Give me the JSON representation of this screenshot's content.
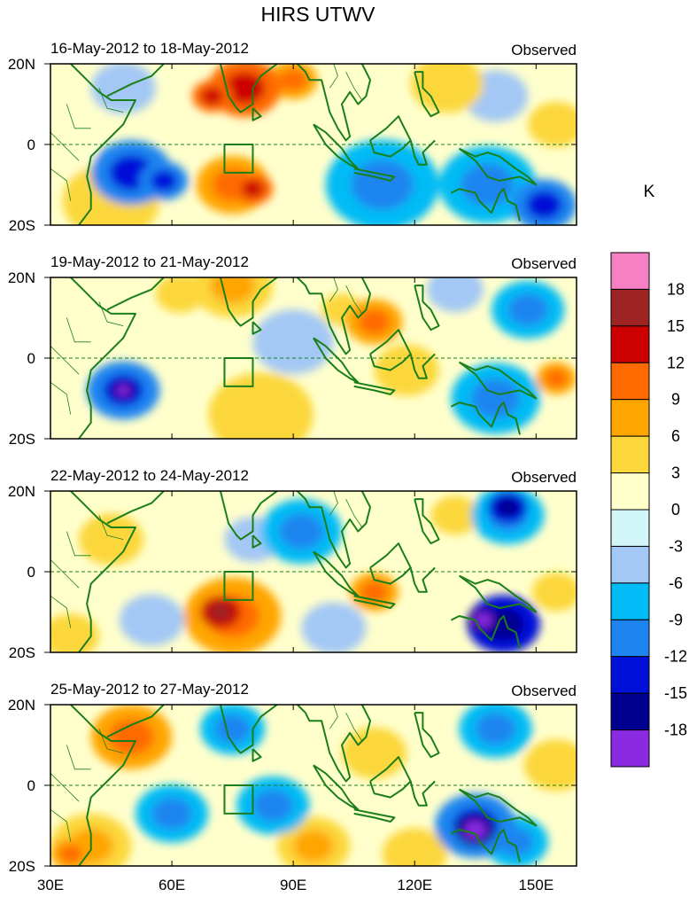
{
  "chart_data": {
    "type": "heatmap",
    "title": "HIRS UTWV",
    "variable": "UTWV anomaly",
    "units_label": "K",
    "x_ticks": [
      {
        "value": 30,
        "label": "30E"
      },
      {
        "value": 60,
        "label": "60E"
      },
      {
        "value": 90,
        "label": "90E"
      },
      {
        "value": 120,
        "label": "120E"
      },
      {
        "value": 150,
        "label": "150E"
      }
    ],
    "y_ticks": [
      {
        "value": 20,
        "label": "20N"
      },
      {
        "value": 0,
        "label": "0"
      },
      {
        "value": -20,
        "label": "20S"
      }
    ],
    "xlim": [
      30,
      160
    ],
    "ylim": [
      -20,
      20
    ],
    "box_region": {
      "lon": [
        73,
        80
      ],
      "lat": [
        -7,
        0
      ]
    },
    "colorbar": {
      "levels": [
        "18",
        "15",
        "12",
        "9",
        "6",
        "3",
        "0",
        "-3",
        "-6",
        "-9",
        "-12",
        "-15",
        "-18"
      ],
      "colors": [
        "#f77fc4",
        "#9e2323",
        "#cc0000",
        "#ff6a00",
        "#ffa500",
        "#fcd73b",
        "#ffffcc",
        "#d2f5f7",
        "#a3c8f5",
        "#00bbf5",
        "#1e85f0",
        "#0010d8",
        "#000090",
        "#8a2be2"
      ]
    },
    "panels": [
      {
        "period": "16-May-2012 to 18-May-2012",
        "tag": "Observed",
        "blobs": [
          {
            "lon": 78,
            "lat": 14,
            "r": 9,
            "v": 10
          },
          {
            "lon": 70,
            "lat": 12,
            "r": 5,
            "v": 12
          },
          {
            "lon": 90,
            "lat": 16,
            "r": 6,
            "v": 7
          },
          {
            "lon": 75,
            "lat": -10,
            "r": 9,
            "v": 9
          },
          {
            "lon": 80,
            "lat": -11,
            "r": 5,
            "v": 10
          },
          {
            "lon": 45,
            "lat": -14,
            "r": 12,
            "v": 5
          },
          {
            "lon": 50,
            "lat": -7,
            "r": 10,
            "v": -9
          },
          {
            "lon": 58,
            "lat": -9,
            "r": 6,
            "v": -10
          },
          {
            "lon": 112,
            "lat": -10,
            "r": 14,
            "v": -8
          },
          {
            "lon": 138,
            "lat": -10,
            "r": 12,
            "v": -7
          },
          {
            "lon": 152,
            "lat": -15,
            "r": 8,
            "v": -9
          },
          {
            "lon": 128,
            "lat": 15,
            "r": 9,
            "v": 5
          },
          {
            "lon": 155,
            "lat": 5,
            "r": 7,
            "v": 5
          },
          {
            "lon": 140,
            "lat": 12,
            "r": 8,
            "v": -4
          },
          {
            "lon": 48,
            "lat": 14,
            "r": 8,
            "v": -5
          },
          {
            "lon": 35,
            "lat": -2,
            "r": 6,
            "v": 2
          }
        ]
      },
      {
        "period": "19-May-2012 to 21-May-2012",
        "tag": "Observed",
        "blobs": [
          {
            "lon": 75,
            "lat": 18,
            "r": 10,
            "v": 6
          },
          {
            "lon": 62,
            "lat": 16,
            "r": 6,
            "v": 5
          },
          {
            "lon": 110,
            "lat": 9,
            "r": 7,
            "v": 8
          },
          {
            "lon": 102,
            "lat": 12,
            "r": 5,
            "v": 5
          },
          {
            "lon": 82,
            "lat": -14,
            "r": 13,
            "v": 5
          },
          {
            "lon": 48,
            "lat": -8,
            "r": 9,
            "v": -10
          },
          {
            "lon": 48,
            "lat": -8,
            "r": 3,
            "v": -16
          },
          {
            "lon": 148,
            "lat": 12,
            "r": 9,
            "v": -8
          },
          {
            "lon": 140,
            "lat": -10,
            "r": 11,
            "v": -8
          },
          {
            "lon": 155,
            "lat": -5,
            "r": 5,
            "v": 7
          },
          {
            "lon": 118,
            "lat": -3,
            "r": 8,
            "v": 4
          },
          {
            "lon": 90,
            "lat": 4,
            "r": 10,
            "v": -3
          },
          {
            "lon": 130,
            "lat": 17,
            "r": 7,
            "v": -3
          }
        ]
      },
      {
        "period": "22-May-2012 to 24-May-2012",
        "tag": "Observed",
        "blobs": [
          {
            "lon": 75,
            "lat": -11,
            "r": 12,
            "v": 7
          },
          {
            "lon": 72,
            "lat": -10,
            "r": 5,
            "v": 13
          },
          {
            "lon": 45,
            "lat": 8,
            "r": 8,
            "v": 5
          },
          {
            "lon": 110,
            "lat": -5,
            "r": 6,
            "v": 9
          },
          {
            "lon": 142,
            "lat": -13,
            "r": 9,
            "v": -12
          },
          {
            "lon": 137,
            "lat": -12,
            "r": 4,
            "v": -15
          },
          {
            "lon": 143,
            "lat": 16,
            "r": 5,
            "v": -13
          },
          {
            "lon": 143,
            "lat": 14,
            "r": 9,
            "v": -7
          },
          {
            "lon": 92,
            "lat": 10,
            "r": 10,
            "v": -6
          },
          {
            "lon": 80,
            "lat": 8,
            "r": 7,
            "v": -4
          },
          {
            "lon": 130,
            "lat": 14,
            "r": 6,
            "v": 4
          },
          {
            "lon": 155,
            "lat": -5,
            "r": 6,
            "v": 5
          },
          {
            "lon": 35,
            "lat": -16,
            "r": 7,
            "v": 4
          },
          {
            "lon": 55,
            "lat": -12,
            "r": 8,
            "v": -4
          },
          {
            "lon": 100,
            "lat": -14,
            "r": 8,
            "v": -5
          }
        ]
      },
      {
        "period": "25-May-2012 to 27-May-2012",
        "tag": "Observed",
        "blobs": [
          {
            "lon": 50,
            "lat": 12,
            "r": 10,
            "v": 7
          },
          {
            "lon": 75,
            "lat": 14,
            "r": 8,
            "v": -6
          },
          {
            "lon": 85,
            "lat": -5,
            "r": 9,
            "v": -7
          },
          {
            "lon": 60,
            "lat": -7,
            "r": 9,
            "v": -6
          },
          {
            "lon": 95,
            "lat": -15,
            "r": 9,
            "v": 6
          },
          {
            "lon": 40,
            "lat": -15,
            "r": 10,
            "v": 6
          },
          {
            "lon": 35,
            "lat": -17,
            "r": 5,
            "v": 9
          },
          {
            "lon": 135,
            "lat": -10,
            "r": 10,
            "v": -10
          },
          {
            "lon": 135,
            "lat": -11,
            "r": 5,
            "v": -15
          },
          {
            "lon": 145,
            "lat": -14,
            "r": 8,
            "v": -8
          },
          {
            "lon": 140,
            "lat": 14,
            "r": 9,
            "v": -7
          },
          {
            "lon": 110,
            "lat": 8,
            "r": 8,
            "v": 4
          },
          {
            "lon": 120,
            "lat": -17,
            "r": 8,
            "v": 5
          },
          {
            "lon": 155,
            "lat": 5,
            "r": 8,
            "v": 4
          }
        ]
      }
    ]
  }
}
